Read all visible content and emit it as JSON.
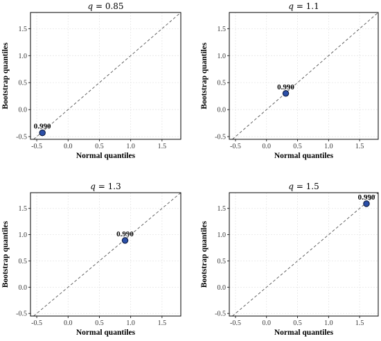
{
  "chart_data": [
    {
      "type": "scatter",
      "title_var": "q",
      "title_value": "0.85",
      "xlabel": "Normal quantiles",
      "ylabel": "Bootstrap quantiles",
      "xlim": [
        -0.6,
        1.8
      ],
      "ylim": [
        -0.55,
        1.8
      ],
      "xticks": [
        "-0.5",
        "0.0",
        "0.5",
        "1.0",
        "1.5"
      ],
      "yticks": [
        "-0.5",
        "0.0",
        "0.5",
        "1.0",
        "1.5"
      ],
      "grid": true,
      "reference_line": "y = x",
      "points": [
        {
          "x": -0.41,
          "y": -0.43,
          "label": "0.990"
        }
      ]
    },
    {
      "type": "scatter",
      "title_var": "q",
      "title_value": "1.1",
      "xlabel": "Normal quantiles",
      "ylabel": "Bootstrap quantiles",
      "xlim": [
        -0.6,
        1.8
      ],
      "ylim": [
        -0.55,
        1.8
      ],
      "xticks": [
        "-0.5",
        "0.0",
        "0.5",
        "1.0",
        "1.5"
      ],
      "yticks": [
        "-0.5",
        "0.0",
        "0.5",
        "1.0",
        "1.5"
      ],
      "grid": true,
      "reference_line": "y = x",
      "points": [
        {
          "x": 0.31,
          "y": 0.3,
          "label": "0.990"
        }
      ]
    },
    {
      "type": "scatter",
      "title_var": "q",
      "title_value": "1.3",
      "xlabel": "Normal quantiles",
      "ylabel": "Bootstrap quantiles",
      "xlim": [
        -0.6,
        1.8
      ],
      "ylim": [
        -0.55,
        1.8
      ],
      "xticks": [
        "-0.5",
        "0.0",
        "0.5",
        "1.0",
        "1.5"
      ],
      "yticks": [
        "-0.5",
        "0.0",
        "0.5",
        "1.0",
        "1.5"
      ],
      "grid": true,
      "reference_line": "y = x",
      "points": [
        {
          "x": 0.91,
          "y": 0.89,
          "label": "0.990"
        }
      ]
    },
    {
      "type": "scatter",
      "title_var": "q",
      "title_value": "1.5",
      "xlabel": "Normal quantiles",
      "ylabel": "Bootstrap quantiles",
      "xlim": [
        -0.6,
        1.8
      ],
      "ylim": [
        -0.55,
        1.8
      ],
      "xticks": [
        "-0.5",
        "0.0",
        "0.5",
        "1.0",
        "1.5"
      ],
      "yticks": [
        "-0.5",
        "0.0",
        "0.5",
        "1.0",
        "1.5"
      ],
      "grid": true,
      "reference_line": "y = x",
      "points": [
        {
          "x": 1.61,
          "y": 1.59,
          "label": "0.990"
        }
      ]
    }
  ],
  "colors": {
    "point_fill": "#2b4fa8",
    "point_edge": "#0d1b3e",
    "reference_line": "#555555",
    "grid": "#e6e6e6",
    "axes": "#000000"
  }
}
